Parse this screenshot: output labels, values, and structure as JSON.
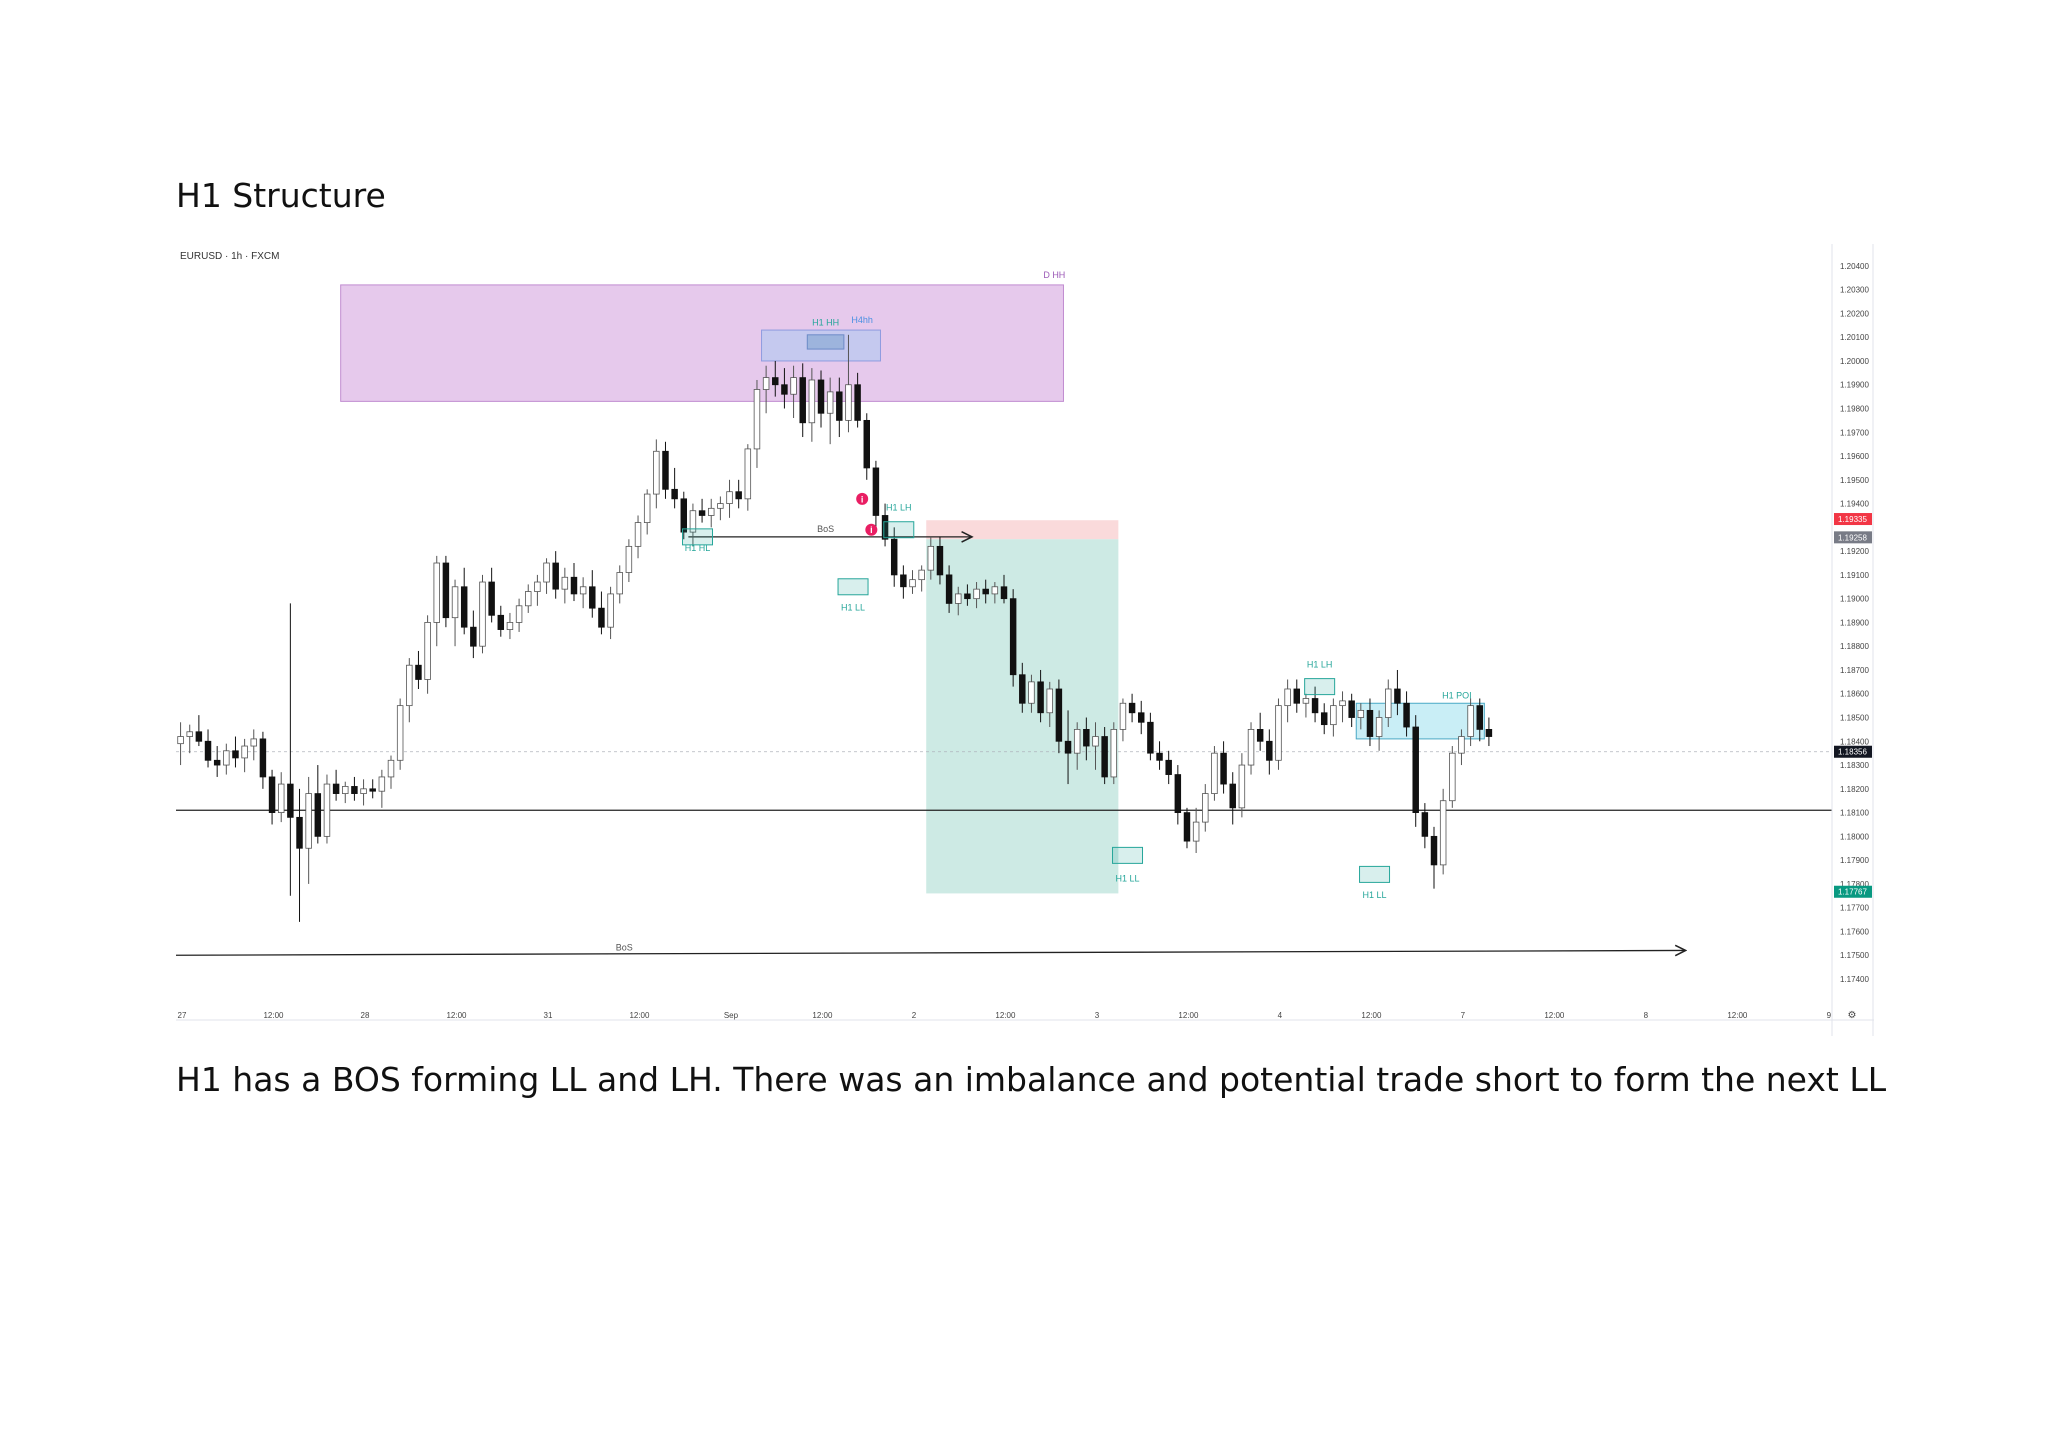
{
  "page": {
    "title": "H1 Structure",
    "caption": "H1 has a BOS forming LL and LH.  There was an imbalance and potential trade short to form the next LL"
  },
  "chart_data": {
    "type": "candlestick",
    "symbol_header": "EURUSD · 1h · FXCM",
    "ylim": [
      1.1732,
      1.2045
    ],
    "y_ticks": [
      "1.20400",
      "1.20300",
      "1.20200",
      "1.20100",
      "1.20000",
      "1.19900",
      "1.19800",
      "1.19700",
      "1.19600",
      "1.19500",
      "1.19400",
      "1.19200",
      "1.19100",
      "1.19000",
      "1.18900",
      "1.18800",
      "1.18700",
      "1.18600",
      "1.18500",
      "1.18400",
      "1.18300",
      "1.18200",
      "1.18100",
      "1.18000",
      "1.17900",
      "1.17800",
      "1.17700",
      "1.17600",
      "1.17500",
      "1.17400"
    ],
    "x_ticks": [
      "27",
      "12:00",
      "28",
      "12:00",
      "31",
      "12:00",
      "Sep",
      "12:00",
      "2",
      "12:00",
      "3",
      "12:00",
      "4",
      "12:00",
      "7",
      "12:00",
      "8",
      "12:00",
      "9"
    ],
    "x_range": [
      0,
      181
    ],
    "x_tick_positions": [
      0,
      10,
      20,
      30,
      40,
      50,
      60,
      70,
      80,
      90,
      100,
      110,
      120,
      130,
      140,
      150,
      160,
      170,
      180
    ],
    "price_labels": [
      {
        "value": "1.19335",
        "price": 1.19335,
        "color": "#f23645"
      },
      {
        "value": "1.19258",
        "price": 1.19258,
        "color": "#787b86"
      },
      {
        "value": "1.18356",
        "price": 1.18356,
        "color": "#131722"
      },
      {
        "value": "1.17767",
        "price": 1.17767,
        "color": "#089981"
      }
    ],
    "candles": [
      [
        1.1839,
        1.1848,
        1.183,
        1.1842
      ],
      [
        1.1842,
        1.1847,
        1.1835,
        1.1844
      ],
      [
        1.1844,
        1.1851,
        1.1838,
        1.184
      ],
      [
        1.184,
        1.1845,
        1.1829,
        1.1832
      ],
      [
        1.1832,
        1.1838,
        1.1825,
        1.183
      ],
      [
        1.183,
        1.1839,
        1.1826,
        1.1836
      ],
      [
        1.1836,
        1.1842,
        1.1829,
        1.1833
      ],
      [
        1.1833,
        1.1841,
        1.1827,
        1.1838
      ],
      [
        1.1838,
        1.1845,
        1.1832,
        1.1841
      ],
      [
        1.1841,
        1.1844,
        1.182,
        1.1825
      ],
      [
        1.1825,
        1.1828,
        1.1805,
        1.181
      ],
      [
        1.181,
        1.1827,
        1.1806,
        1.1822
      ],
      [
        1.1822,
        1.1898,
        1.1775,
        1.1808
      ],
      [
        1.1808,
        1.182,
        1.1764,
        1.1795
      ],
      [
        1.1795,
        1.1825,
        1.178,
        1.1818
      ],
      [
        1.1818,
        1.183,
        1.1797,
        1.18
      ],
      [
        1.18,
        1.1826,
        1.1797,
        1.1822
      ],
      [
        1.1822,
        1.1828,
        1.1815,
        1.1818
      ],
      [
        1.1818,
        1.1823,
        1.1814,
        1.1821
      ],
      [
        1.1821,
        1.1825,
        1.1815,
        1.1818
      ],
      [
        1.1818,
        1.1824,
        1.1813,
        1.182
      ],
      [
        1.182,
        1.1824,
        1.1816,
        1.1819
      ],
      [
        1.1819,
        1.1828,
        1.1812,
        1.1825
      ],
      [
        1.1825,
        1.1834,
        1.182,
        1.1832
      ],
      [
        1.1832,
        1.1858,
        1.1828,
        1.1855
      ],
      [
        1.1855,
        1.1875,
        1.1848,
        1.1872
      ],
      [
        1.1872,
        1.1878,
        1.1862,
        1.1866
      ],
      [
        1.1866,
        1.1893,
        1.186,
        1.189
      ],
      [
        1.189,
        1.1918,
        1.188,
        1.1915
      ],
      [
        1.1915,
        1.1918,
        1.1888,
        1.1892
      ],
      [
        1.1892,
        1.1908,
        1.188,
        1.1905
      ],
      [
        1.1905,
        1.1913,
        1.1885,
        1.1888
      ],
      [
        1.1888,
        1.1895,
        1.1875,
        1.188
      ],
      [
        1.188,
        1.191,
        1.1877,
        1.1907
      ],
      [
        1.1907,
        1.1913,
        1.189,
        1.1893
      ],
      [
        1.1893,
        1.1897,
        1.1884,
        1.1887
      ],
      [
        1.1887,
        1.1894,
        1.1883,
        1.189
      ],
      [
        1.189,
        1.19,
        1.1886,
        1.1897
      ],
      [
        1.1897,
        1.1906,
        1.1894,
        1.1903
      ],
      [
        1.1903,
        1.191,
        1.1897,
        1.1907
      ],
      [
        1.1907,
        1.1917,
        1.1902,
        1.1915
      ],
      [
        1.1915,
        1.192,
        1.19,
        1.1904
      ],
      [
        1.1904,
        1.1913,
        1.1898,
        1.1909
      ],
      [
        1.1909,
        1.1915,
        1.1899,
        1.1902
      ],
      [
        1.1902,
        1.1909,
        1.1896,
        1.1905
      ],
      [
        1.1905,
        1.1912,
        1.1892,
        1.1896
      ],
      [
        1.1896,
        1.1903,
        1.1885,
        1.1888
      ],
      [
        1.1888,
        1.1905,
        1.1883,
        1.1902
      ],
      [
        1.1902,
        1.1914,
        1.1898,
        1.1911
      ],
      [
        1.1911,
        1.1925,
        1.1907,
        1.1922
      ],
      [
        1.1922,
        1.1935,
        1.1917,
        1.1932
      ],
      [
        1.1932,
        1.1946,
        1.1927,
        1.1944
      ],
      [
        1.1944,
        1.1967,
        1.1938,
        1.1962
      ],
      [
        1.1962,
        1.1966,
        1.1942,
        1.1946
      ],
      [
        1.1946,
        1.1955,
        1.1938,
        1.1942
      ],
      [
        1.1942,
        1.1945,
        1.1925,
        1.1928
      ],
      [
        1.1928,
        1.194,
        1.1922,
        1.1937
      ],
      [
        1.1937,
        1.1942,
        1.1932,
        1.1935
      ],
      [
        1.1935,
        1.1942,
        1.193,
        1.1938
      ],
      [
        1.1938,
        1.1943,
        1.1933,
        1.194
      ],
      [
        1.194,
        1.195,
        1.1934,
        1.1945
      ],
      [
        1.1945,
        1.195,
        1.1938,
        1.1942
      ],
      [
        1.1942,
        1.1965,
        1.1937,
        1.1963
      ],
      [
        1.1963,
        1.1992,
        1.1955,
        1.1988
      ],
      [
        1.1988,
        1.1998,
        1.1978,
        1.1993
      ],
      [
        1.1993,
        1.2,
        1.1985,
        1.199
      ],
      [
        1.199,
        1.1997,
        1.198,
        1.1986
      ],
      [
        1.1986,
        1.1998,
        1.1976,
        1.1993
      ],
      [
        1.1993,
        1.1999,
        1.1968,
        1.1974
      ],
      [
        1.1974,
        1.1997,
        1.1966,
        1.1992
      ],
      [
        1.1992,
        1.1996,
        1.1972,
        1.1978
      ],
      [
        1.1978,
        1.1993,
        1.1965,
        1.1987
      ],
      [
        1.1987,
        1.1993,
        1.1968,
        1.1975
      ],
      [
        1.1975,
        1.2011,
        1.197,
        1.199
      ],
      [
        1.199,
        1.1995,
        1.1972,
        1.1975
      ],
      [
        1.1975,
        1.1978,
        1.195,
        1.1955
      ],
      [
        1.1955,
        1.1958,
        1.1928,
        1.1935
      ],
      [
        1.1935,
        1.194,
        1.1922,
        1.1925
      ],
      [
        1.1925,
        1.193,
        1.1905,
        1.191
      ],
      [
        1.191,
        1.1914,
        1.19,
        1.1905
      ],
      [
        1.1905,
        1.1912,
        1.1902,
        1.1908
      ],
      [
        1.1908,
        1.1914,
        1.1903,
        1.1912
      ],
      [
        1.1912,
        1.1926,
        1.1908,
        1.1922
      ],
      [
        1.1922,
        1.1926,
        1.1906,
        1.191
      ],
      [
        1.191,
        1.1914,
        1.1894,
        1.1898
      ],
      [
        1.1898,
        1.1905,
        1.1893,
        1.1902
      ],
      [
        1.1902,
        1.1906,
        1.1897,
        1.19
      ],
      [
        1.19,
        1.1907,
        1.1896,
        1.1904
      ],
      [
        1.1904,
        1.1908,
        1.1898,
        1.1902
      ],
      [
        1.1902,
        1.1907,
        1.1898,
        1.1905
      ],
      [
        1.1905,
        1.191,
        1.1898,
        1.19
      ],
      [
        1.19,
        1.1904,
        1.1863,
        1.1868
      ],
      [
        1.1868,
        1.1873,
        1.1852,
        1.1856
      ],
      [
        1.1856,
        1.1868,
        1.1852,
        1.1865
      ],
      [
        1.1865,
        1.187,
        1.1848,
        1.1852
      ],
      [
        1.1852,
        1.1865,
        1.1846,
        1.1862
      ],
      [
        1.1862,
        1.1866,
        1.1835,
        1.184
      ],
      [
        1.184,
        1.1853,
        1.1822,
        1.1835
      ],
      [
        1.1835,
        1.1848,
        1.1828,
        1.1845
      ],
      [
        1.1845,
        1.185,
        1.1832,
        1.1838
      ],
      [
        1.1838,
        1.1848,
        1.1828,
        1.1842
      ],
      [
        1.1842,
        1.1846,
        1.1822,
        1.1825
      ],
      [
        1.1825,
        1.1848,
        1.1822,
        1.1845
      ],
      [
        1.1845,
        1.1858,
        1.184,
        1.1856
      ],
      [
        1.1856,
        1.186,
        1.1848,
        1.1852
      ],
      [
        1.1852,
        1.1857,
        1.1843,
        1.1848
      ],
      [
        1.1848,
        1.1852,
        1.1832,
        1.1835
      ],
      [
        1.1835,
        1.184,
        1.1828,
        1.1832
      ],
      [
        1.1832,
        1.1836,
        1.1822,
        1.1826
      ],
      [
        1.1826,
        1.183,
        1.1805,
        1.181
      ],
      [
        1.181,
        1.1812,
        1.1795,
        1.1798
      ],
      [
        1.1798,
        1.1812,
        1.1793,
        1.1806
      ],
      [
        1.1806,
        1.1822,
        1.1802,
        1.1818
      ],
      [
        1.1818,
        1.1838,
        1.1815,
        1.1835
      ],
      [
        1.1835,
        1.184,
        1.1818,
        1.1822
      ],
      [
        1.1822,
        1.1827,
        1.1805,
        1.1812
      ],
      [
        1.1812,
        1.1835,
        1.1808,
        1.183
      ],
      [
        1.183,
        1.1848,
        1.1826,
        1.1845
      ],
      [
        1.1845,
        1.1852,
        1.1836,
        1.184
      ],
      [
        1.184,
        1.1845,
        1.1826,
        1.1832
      ],
      [
        1.1832,
        1.1858,
        1.1828,
        1.1855
      ],
      [
        1.1855,
        1.1866,
        1.1848,
        1.1862
      ],
      [
        1.1862,
        1.1866,
        1.1852,
        1.1856
      ],
      [
        1.1856,
        1.186,
        1.185,
        1.1858
      ],
      [
        1.1858,
        1.1863,
        1.1848,
        1.1852
      ],
      [
        1.1852,
        1.1856,
        1.1843,
        1.1847
      ],
      [
        1.1847,
        1.1858,
        1.1842,
        1.1855
      ],
      [
        1.1855,
        1.1861,
        1.1848,
        1.1857
      ],
      [
        1.1857,
        1.186,
        1.1846,
        1.185
      ],
      [
        1.185,
        1.1856,
        1.1845,
        1.1853
      ],
      [
        1.1853,
        1.1858,
        1.1838,
        1.1842
      ],
      [
        1.1842,
        1.1853,
        1.1836,
        1.185
      ],
      [
        1.185,
        1.1866,
        1.1846,
        1.1862
      ],
      [
        1.1862,
        1.187,
        1.1851,
        1.1856
      ],
      [
        1.1856,
        1.1861,
        1.1842,
        1.1846
      ],
      [
        1.1846,
        1.1851,
        1.1804,
        1.181
      ],
      [
        1.181,
        1.1814,
        1.1795,
        1.18
      ],
      [
        1.18,
        1.1804,
        1.1778,
        1.1788
      ],
      [
        1.1788,
        1.182,
        1.1784,
        1.1815
      ],
      [
        1.1815,
        1.1838,
        1.1812,
        1.1835
      ],
      [
        1.1835,
        1.1845,
        1.183,
        1.1842
      ],
      [
        1.1842,
        1.1858,
        1.1838,
        1.1855
      ],
      [
        1.1855,
        1.1858,
        1.184,
        1.1845
      ],
      [
        1.1845,
        1.185,
        1.1838,
        1.1842
      ]
    ],
    "zones": [
      {
        "name": "D HH",
        "x0": 18,
        "x1": 97,
        "y0": 1.1983,
        "y1": 1.2032,
        "fill": "#e6c9ec",
        "stroke": "#c08bd0"
      },
      {
        "name": "H4hh",
        "x0": 64,
        "x1": 77,
        "y0": 1.2,
        "y1": 1.2013,
        "fill": "#c5c9ef",
        "stroke": "#8e9be0"
      },
      {
        "name": "H1 HH",
        "x0": 69,
        "x1": 73,
        "y0": 1.2005,
        "y1": 1.2011,
        "fill": "#9db4dd",
        "stroke": "#6d8bc7"
      },
      {
        "name": "trade-stop",
        "x0": 82,
        "x1": 103,
        "y0": 1.1925,
        "y1": 1.1933,
        "fill": "#fadadb",
        "stroke": "none"
      },
      {
        "name": "trade-target",
        "x0": 82,
        "x1": 103,
        "y0": 1.1776,
        "y1": 1.1925,
        "fill": "#cdeae4",
        "stroke": "none"
      },
      {
        "name": "H1 POI",
        "x0": 129,
        "x1": 143,
        "y0": 1.1841,
        "y1": 1.1856,
        "fill": "#c9eef6",
        "stroke": "#4aa8c5"
      }
    ],
    "labels": [
      {
        "text": "D HH",
        "x": 96,
        "y": 1.2035,
        "color": "#9b59b6"
      },
      {
        "text": "H1 HH",
        "x": 71,
        "y": 1.2015,
        "color": "#26a69a"
      },
      {
        "text": "H4hh",
        "x": 75,
        "y": 1.2016,
        "color": "#4a90e2"
      },
      {
        "text": "H1 HL",
        "x": 57,
        "y": 1.192,
        "color": "#26a69a"
      },
      {
        "text": "BoS",
        "x": 71,
        "y": 1.1928,
        "color": "#555555"
      },
      {
        "text": "H1 LH",
        "x": 79,
        "y": 1.1937,
        "color": "#26a69a"
      },
      {
        "text": "H1 LL",
        "x": 74,
        "y": 1.1895,
        "color": "#26a69a"
      },
      {
        "text": "H1 LL",
        "x": 104,
        "y": 1.1781,
        "color": "#26a69a"
      },
      {
        "text": "H1 LH",
        "x": 125,
        "y": 1.1871,
        "color": "#26a69a"
      },
      {
        "text": "H1 POI",
        "x": 140,
        "y": 1.1858,
        "color": "#26a69a"
      },
      {
        "text": "H1 LL",
        "x": 131,
        "y": 1.1774,
        "color": "#26a69a"
      },
      {
        "text": "BoS",
        "x": 49,
        "y": 1.1752,
        "color": "#555555"
      }
    ],
    "swing_boxes": [
      {
        "x": 57,
        "y": 1.1926
      },
      {
        "x": 74,
        "y": 1.1905
      },
      {
        "x": 79,
        "y": 1.1929
      },
      {
        "x": 104,
        "y": 1.1792
      },
      {
        "x": 125,
        "y": 1.1863
      },
      {
        "x": 131,
        "y": 1.1784
      }
    ],
    "lines": [
      {
        "name": "bos-upper",
        "x0": 56,
        "x1": 87,
        "y": 1.1926,
        "arrow": true
      },
      {
        "name": "bos-lower",
        "x0": 0,
        "x1": 165,
        "y": 1.175,
        "y_end": 1.1752,
        "arrow": true
      },
      {
        "name": "support-line",
        "x0": 0,
        "x1": 181,
        "y": 1.1811,
        "arrow": false
      }
    ],
    "markers": [
      {
        "x": 75,
        "y": 1.1942
      },
      {
        "x": 76,
        "y": 1.1929
      }
    ]
  }
}
